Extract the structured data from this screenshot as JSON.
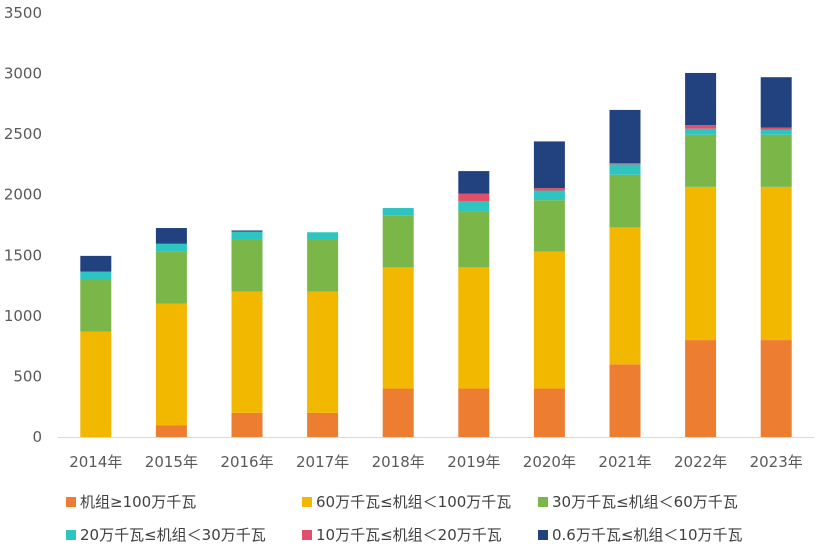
{
  "chart_data": {
    "type": "bar",
    "stacked": true,
    "title": "",
    "xlabel": "",
    "ylabel": "",
    "categories": [
      "2014年",
      "2015年",
      "2016年",
      "2017年",
      "2018年",
      "2019年",
      "2020年",
      "2021年",
      "2022年",
      "2023年"
    ],
    "y_ticks": [
      0,
      500,
      1000,
      1500,
      2000,
      2500,
      3000,
      3500
    ],
    "ylim": [
      0,
      3500
    ],
    "grid": false,
    "legend_position": "bottom",
    "series": [
      {
        "name": "机组≥100万千瓦",
        "color": "#ED7D31",
        "values": [
          0,
          95,
          200,
          200,
          400,
          400,
          400,
          600,
          800,
          800
        ]
      },
      {
        "name": "60万千瓦≤机组＜100万千瓦",
        "color": "#F2B800",
        "values": [
          870,
          1005,
          1000,
          1000,
          1000,
          1000,
          1130,
          1130,
          1265,
          1265
        ]
      },
      {
        "name": "30万千瓦≤机组＜60万千瓦",
        "color": "#7AB648",
        "values": [
          430,
          430,
          430,
          430,
          430,
          465,
          425,
          435,
          430,
          430
        ]
      },
      {
        "name": "20万千瓦≤机组＜30万千瓦",
        "color": "#2EC4C0",
        "values": [
          65,
          65,
          65,
          60,
          60,
          80,
          80,
          85,
          50,
          40
        ]
      },
      {
        "name": "10万千瓦≤机组＜20万千瓦",
        "color": "#E0506A",
        "values": [
          0,
          0,
          0,
          0,
          0,
          65,
          20,
          10,
          30,
          20
        ]
      },
      {
        "name": "0.6万千瓦≤机组＜10万千瓦",
        "color": "#21427E",
        "values": [
          130,
          130,
          10,
          0,
          0,
          185,
          385,
          440,
          430,
          415
        ]
      }
    ]
  }
}
